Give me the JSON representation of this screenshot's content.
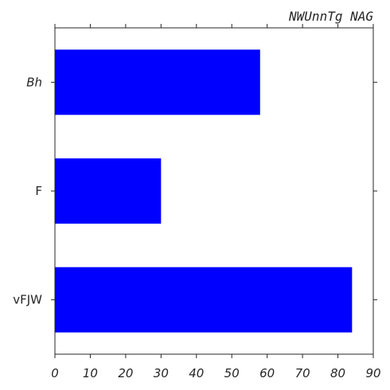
{
  "chart_data": {
    "type": "bar",
    "orientation": "horizontal",
    "title": "NWUnnTg NAG",
    "xlabel": "",
    "ylabel": "",
    "categories": [
      "Bh",
      "F",
      "vFJW"
    ],
    "category_italic": [
      true,
      false,
      false
    ],
    "values": [
      58,
      30,
      84
    ],
    "xlim": [
      0,
      90
    ],
    "xticks": [
      "0",
      "10",
      "20",
      "30",
      "40",
      "50",
      "60",
      "70",
      "80",
      "90"
    ],
    "bar_color": "#0000ff",
    "grid": false,
    "legend": "none"
  }
}
